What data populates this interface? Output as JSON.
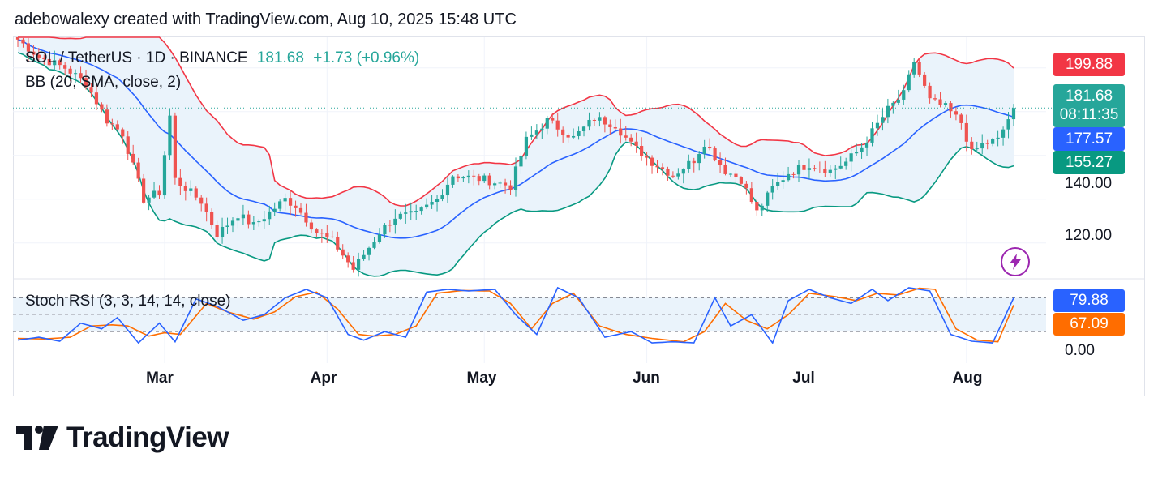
{
  "header": {
    "text": "adebowalexy created with TradingView.com, Aug 10, 2025 15:48 UTC"
  },
  "legend": {
    "symbol": "SOL / TetherUS · 1D · BINANCE",
    "price": "181.68",
    "change": "+1.73 (+0.96%)",
    "bb": "BB (20, SMA, close, 2)",
    "stoch": "Stoch RSI (3, 3, 14, 14, close)"
  },
  "tags": {
    "bb_upper": "199.88",
    "price": "181.68",
    "countdown": "08:11:35",
    "bb_basis": "177.57",
    "bb_lower": "155.27",
    "stoch_k": "79.88",
    "stoch_d": "67.09"
  },
  "colors": {
    "up": "#26a69a",
    "down": "#ef5350",
    "bb_upper": "#f23645",
    "bb_basis": "#2962ff",
    "bb_lower": "#089981",
    "bb_fill": "#eaf3fb",
    "stoch_k": "#2962ff",
    "stoch_d": "#ff6d00",
    "price_tag": "#26a69a"
  },
  "brand": {
    "name": "TradingView",
    "logo_icon": "tradingview-logo-icon",
    "bolt_icon": "lightning-bolt-icon"
  },
  "chart_data": [
    {
      "type": "candlestick",
      "title": "SOL / TetherUS · 1D · BINANCE",
      "y_ticks": [
        "120.00",
        "140.00"
      ],
      "x_ticks": [
        "Mar",
        "Apr",
        "May",
        "Jun",
        "Jul",
        "Aug"
      ],
      "ylim": [
        104,
        214
      ],
      "date_range": [
        "2025-02-01",
        "2025-08-10"
      ],
      "last_close": 181.68,
      "series": [
        {
          "name": "BB Upper",
          "value_last": 199.88
        },
        {
          "name": "BB Basis",
          "value_last": 177.57
        },
        {
          "name": "BB Lower",
          "value_last": 155.27
        }
      ],
      "anchors": [
        [
          "2025-02-01",
          213
        ],
        [
          "2025-02-05",
          205
        ],
        [
          "2025-02-10",
          200
        ],
        [
          "2025-02-14",
          193
        ],
        [
          "2025-02-18",
          176
        ],
        [
          "2025-02-21",
          170
        ],
        [
          "2025-02-25",
          140
        ],
        [
          "2025-02-28",
          143
        ],
        [
          "2025-03-02",
          178
        ],
        [
          "2025-03-03",
          149
        ],
        [
          "2025-03-08",
          139
        ],
        [
          "2025-03-11",
          124
        ],
        [
          "2025-03-15",
          133
        ],
        [
          "2025-03-18",
          128
        ],
        [
          "2025-03-24",
          140
        ],
        [
          "2025-03-26",
          137
        ],
        [
          "2025-03-30",
          125
        ],
        [
          "2025-04-02",
          121
        ],
        [
          "2025-04-06",
          108
        ],
        [
          "2025-04-09",
          118
        ],
        [
          "2025-04-11",
          125
        ],
        [
          "2025-04-14",
          132
        ],
        [
          "2025-04-18",
          133
        ],
        [
          "2025-04-22",
          140
        ],
        [
          "2025-04-25",
          151
        ],
        [
          "2025-05-01",
          149
        ],
        [
          "2025-05-06",
          146
        ],
        [
          "2025-05-09",
          167
        ],
        [
          "2025-05-13",
          176
        ],
        [
          "2025-05-18",
          168
        ],
        [
          "2025-05-22",
          177
        ],
        [
          "2025-05-26",
          174
        ],
        [
          "2025-05-29",
          165
        ],
        [
          "2025-06-02",
          157
        ],
        [
          "2025-06-06",
          151
        ],
        [
          "2025-06-10",
          158
        ],
        [
          "2025-06-12",
          166
        ],
        [
          "2025-06-16",
          153
        ],
        [
          "2025-06-19",
          149
        ],
        [
          "2025-06-22",
          134
        ],
        [
          "2025-06-25",
          145
        ],
        [
          "2025-06-28",
          152
        ],
        [
          "2025-07-02",
          156
        ],
        [
          "2025-07-06",
          153
        ],
        [
          "2025-07-09",
          157
        ],
        [
          "2025-07-12",
          164
        ],
        [
          "2025-07-17",
          181
        ],
        [
          "2025-07-20",
          188
        ],
        [
          "2025-07-22",
          203
        ],
        [
          "2025-07-25",
          185
        ],
        [
          "2025-07-28",
          182
        ],
        [
          "2025-07-31",
          175
        ],
        [
          "2025-08-02",
          161
        ],
        [
          "2025-08-04",
          165
        ],
        [
          "2025-08-07",
          167
        ],
        [
          "2025-08-10",
          181.68
        ]
      ]
    },
    {
      "type": "line",
      "title": "Stoch RSI (3, 3, 14, 14, close)",
      "y_ticks": [
        "0.00"
      ],
      "ylim": [
        -20,
        105
      ],
      "series": [
        {
          "name": "K",
          "value_last": 79.88
        },
        {
          "name": "D",
          "value_last": 67.09
        }
      ],
      "k_anchors": [
        [
          "2025-02-01",
          5
        ],
        [
          "2025-02-05",
          10
        ],
        [
          "2025-02-09",
          3
        ],
        [
          "2025-02-13",
          35
        ],
        [
          "2025-02-17",
          25
        ],
        [
          "2025-02-20",
          45
        ],
        [
          "2025-02-24",
          0
        ],
        [
          "2025-02-28",
          35
        ],
        [
          "2025-03-03",
          2
        ],
        [
          "2025-03-07",
          78
        ],
        [
          "2025-03-11",
          65
        ],
        [
          "2025-03-16",
          40
        ],
        [
          "2025-03-20",
          50
        ],
        [
          "2025-03-24",
          80
        ],
        [
          "2025-03-28",
          95
        ],
        [
          "2025-04-01",
          80
        ],
        [
          "2025-04-05",
          15
        ],
        [
          "2025-04-08",
          5
        ],
        [
          "2025-04-12",
          20
        ],
        [
          "2025-04-16",
          10
        ],
        [
          "2025-04-20",
          90
        ],
        [
          "2025-04-24",
          95
        ],
        [
          "2025-04-28",
          92
        ],
        [
          "2025-05-03",
          95
        ],
        [
          "2025-05-07",
          50
        ],
        [
          "2025-05-11",
          15
        ],
        [
          "2025-05-15",
          98
        ],
        [
          "2025-05-19",
          80
        ],
        [
          "2025-05-24",
          10
        ],
        [
          "2025-05-29",
          20
        ],
        [
          "2025-06-02",
          0
        ],
        [
          "2025-06-06",
          2
        ],
        [
          "2025-06-10",
          0
        ],
        [
          "2025-06-14",
          80
        ],
        [
          "2025-06-17",
          30
        ],
        [
          "2025-06-21",
          50
        ],
        [
          "2025-06-25",
          0
        ],
        [
          "2025-06-28",
          75
        ],
        [
          "2025-07-02",
          95
        ],
        [
          "2025-07-06",
          80
        ],
        [
          "2025-07-10",
          70
        ],
        [
          "2025-07-14",
          95
        ],
        [
          "2025-07-17",
          75
        ],
        [
          "2025-07-21",
          98
        ],
        [
          "2025-07-25",
          92
        ],
        [
          "2025-07-29",
          15
        ],
        [
          "2025-08-02",
          3
        ],
        [
          "2025-08-06",
          0
        ],
        [
          "2025-08-10",
          79.88
        ]
      ],
      "d_anchors": [
        [
          "2025-02-01",
          8
        ],
        [
          "2025-02-06",
          7
        ],
        [
          "2025-02-11",
          10
        ],
        [
          "2025-02-15",
          30
        ],
        [
          "2025-02-19",
          32
        ],
        [
          "2025-02-22",
          30
        ],
        [
          "2025-02-26",
          12
        ],
        [
          "2025-03-01",
          18
        ],
        [
          "2025-03-04",
          15
        ],
        [
          "2025-03-09",
          70
        ],
        [
          "2025-03-13",
          55
        ],
        [
          "2025-03-18",
          42
        ],
        [
          "2025-03-22",
          55
        ],
        [
          "2025-03-26",
          82
        ],
        [
          "2025-03-30",
          90
        ],
        [
          "2025-04-03",
          60
        ],
        [
          "2025-04-07",
          15
        ],
        [
          "2025-04-10",
          12
        ],
        [
          "2025-04-14",
          15
        ],
        [
          "2025-04-18",
          30
        ],
        [
          "2025-04-22",
          88
        ],
        [
          "2025-04-27",
          93
        ],
        [
          "2025-05-02",
          92
        ],
        [
          "2025-05-06",
          70
        ],
        [
          "2025-05-10",
          25
        ],
        [
          "2025-05-14",
          70
        ],
        [
          "2025-05-18",
          88
        ],
        [
          "2025-05-23",
          30
        ],
        [
          "2025-05-28",
          15
        ],
        [
          "2025-06-02",
          8
        ],
        [
          "2025-06-08",
          2
        ],
        [
          "2025-06-12",
          20
        ],
        [
          "2025-06-16",
          70
        ],
        [
          "2025-06-20",
          40
        ],
        [
          "2025-06-24",
          25
        ],
        [
          "2025-06-28",
          50
        ],
        [
          "2025-07-02",
          88
        ],
        [
          "2025-07-07",
          82
        ],
        [
          "2025-07-11",
          75
        ],
        [
          "2025-07-15",
          88
        ],
        [
          "2025-07-19",
          85
        ],
        [
          "2025-07-23",
          97
        ],
        [
          "2025-07-26",
          95
        ],
        [
          "2025-07-30",
          25
        ],
        [
          "2025-08-03",
          5
        ],
        [
          "2025-08-07",
          2
        ],
        [
          "2025-08-10",
          67.09
        ]
      ]
    }
  ]
}
